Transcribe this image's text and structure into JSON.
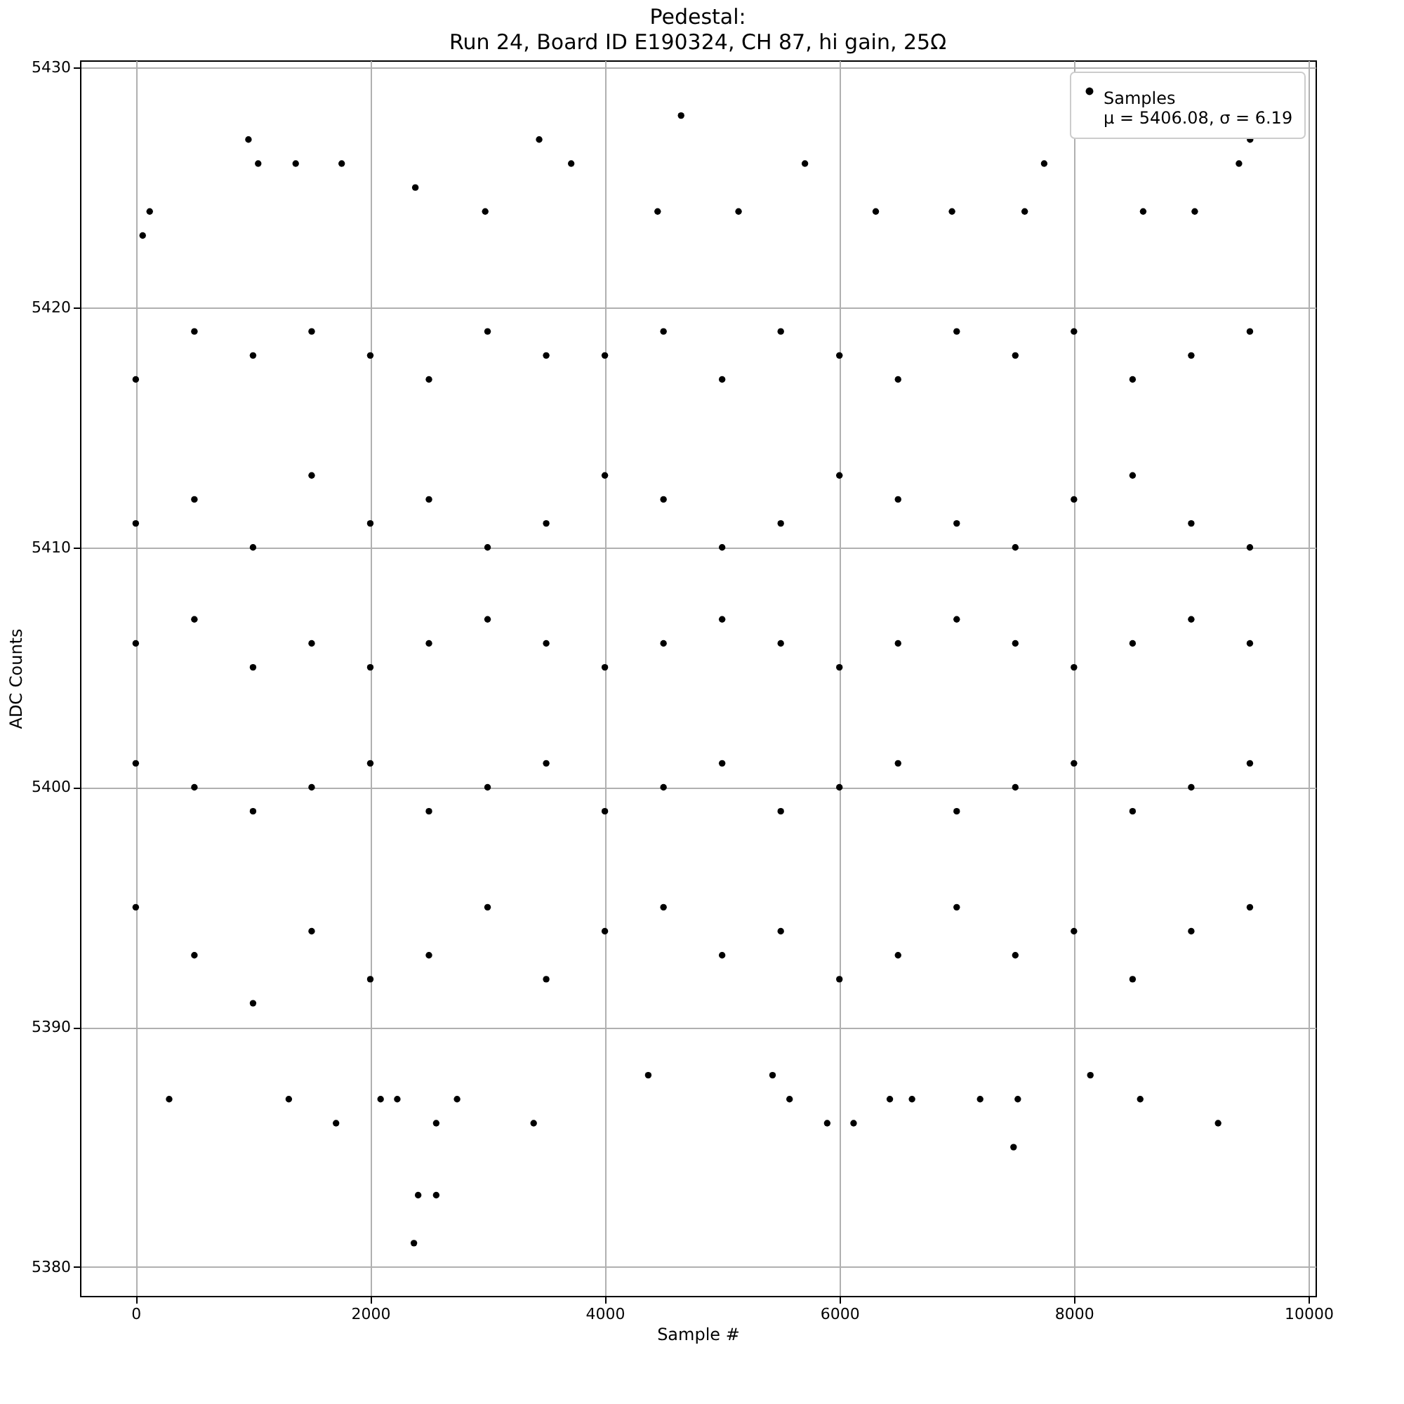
{
  "chart_data": {
    "type": "scatter",
    "title": "Pedestal:",
    "subtitle": "Run 24, Board ID E190324, CH 87, hi gain, 25Ω",
    "xlabel": "Sample #",
    "ylabel": "ADC Counts",
    "xlim": [
      -475,
      10060
    ],
    "xticks": [
      0,
      2000,
      4000,
      6000,
      8000,
      10000
    ],
    "ylim": [
      5378.8,
      5430.3
    ],
    "yticks": [
      5380,
      5390,
      5400,
      5410,
      5420,
      5430
    ],
    "grid": true,
    "legend": "top right",
    "marker": "circle",
    "series": [
      {
        "name": "Samples\nμ = 5406.08, σ = 6.19",
        "color": "#000000",
        "x": [
          0,
          0,
          0,
          0,
          0,
          500,
          500,
          500,
          500,
          500,
          1000,
          1000,
          1000,
          1000,
          1000,
          1500,
          1500,
          1500,
          1500,
          1500,
          2000,
          2000,
          2000,
          2000,
          2000,
          2500,
          2500,
          2500,
          2500,
          2500,
          3000,
          3000,
          3000,
          3000,
          3000,
          3500,
          3500,
          3500,
          3500,
          3500,
          4000,
          4000,
          4000,
          4000,
          4000,
          4500,
          4500,
          4500,
          4500,
          4500,
          5000,
          5000,
          5000,
          5000,
          5000,
          5500,
          5500,
          5500,
          5500,
          5500,
          6000,
          6000,
          6000,
          6000,
          6000,
          6500,
          6500,
          6500,
          6500,
          6500,
          7000,
          7000,
          7000,
          7000,
          7000,
          7500,
          7500,
          7500,
          7500,
          7500,
          8000,
          8000,
          8000,
          8000,
          8000,
          8500,
          8500,
          8500,
          8500,
          8500,
          9000,
          9000,
          9000,
          9000,
          9000,
          9500,
          9500,
          9500,
          9500,
          9500,
          2372,
          2408,
          2562,
          4650,
          961,
          3440,
          9502,
          7485,
          9229,
          1708,
          3393,
          5896,
          6121,
          59,
          119,
          285,
          1044,
          1364,
          1756,
          2384,
          3713,
          5706,
          7746,
          9407,
          2562,
          2230,
          2088,
          1305,
          8565,
          6619,
          6430,
          7200,
          7521,
          5575,
          2740,
          4370,
          5430,
          8140,
          2980,
          4450,
          5140,
          6310,
          6960,
          7580,
          8590,
          9030
        ],
        "values": [
          5395,
          5401,
          5406,
          5411,
          5417,
          5393,
          5400,
          5407,
          5412,
          5419,
          5391,
          5399,
          5405,
          5410,
          5418,
          5394,
          5400,
          5406,
          5413,
          5419,
          5392,
          5401,
          5405,
          5411,
          5418,
          5393,
          5399,
          5406,
          5412,
          5417,
          5395,
          5400,
          5407,
          5410,
          5419,
          5392,
          5401,
          5406,
          5411,
          5418,
          5394,
          5399,
          5405,
          5413,
          5418,
          5395,
          5400,
          5406,
          5412,
          5419,
          5393,
          5401,
          5407,
          5410,
          5417,
          5394,
          5399,
          5406,
          5411,
          5419,
          5392,
          5400,
          5405,
          5413,
          5418,
          5393,
          5401,
          5406,
          5412,
          5417,
          5395,
          5399,
          5407,
          5411,
          5419,
          5393,
          5400,
          5406,
          5410,
          5418,
          5394,
          5401,
          5405,
          5412,
          5419,
          5392,
          5399,
          5406,
          5413,
          5417,
          5394,
          5400,
          5407,
          5411,
          5418,
          5395,
          5401,
          5406,
          5410,
          5419,
          5381,
          5383,
          5383,
          5428,
          5427,
          5427,
          5427,
          5385,
          5386,
          5386,
          5386,
          5386,
          5386,
          5423,
          5424,
          5387,
          5426,
          5426,
          5426,
          5425,
          5426,
          5426,
          5426,
          5426,
          5386,
          5387,
          5387,
          5387,
          5387,
          5387,
          5387,
          5387,
          5387,
          5387,
          5387,
          5388,
          5388,
          5388,
          5424,
          5424,
          5424,
          5424,
          5424,
          5424,
          5424,
          5424
        ]
      }
    ]
  }
}
